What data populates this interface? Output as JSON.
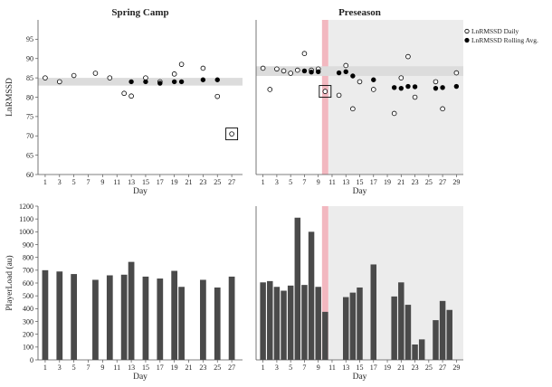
{
  "chart_data": [
    {
      "id": "hrv-spring",
      "type": "scatter",
      "title": "Spring Camp",
      "xlabel": "Day",
      "ylabel": "LnRMSSD",
      "xlim": [
        0,
        28.5
      ],
      "ylim": [
        60,
        100
      ],
      "x_ticks": [
        1,
        3,
        5,
        7,
        9,
        11,
        13,
        15,
        17,
        19,
        21,
        23,
        25,
        27
      ],
      "y_ticks": [
        60,
        65,
        70,
        75,
        80,
        85,
        90,
        95
      ],
      "band": [
        83,
        85
      ],
      "boxed_day": 27,
      "series": [
        {
          "name": "LnRMSSD Daily",
          "marker": "open-circle",
          "x": [
            1,
            3,
            5,
            8,
            10,
            12,
            13,
            15,
            17,
            19,
            20,
            23,
            25,
            27
          ],
          "y": [
            85,
            84,
            85.6,
            86.2,
            85,
            81,
            80.3,
            85,
            84,
            86,
            88.5,
            87.5,
            80.2,
            70.5
          ]
        },
        {
          "name": "LnRMSSD Rolling Avg.",
          "marker": "filled-circle",
          "x": [
            13,
            15,
            17,
            19,
            20,
            23,
            25
          ],
          "y": [
            84,
            84,
            83.6,
            84,
            84,
            84.5,
            84.5
          ]
        }
      ]
    },
    {
      "id": "hrv-preseason",
      "type": "scatter",
      "title": "Preseason",
      "xlabel": "Day",
      "xlim": [
        0,
        30
      ],
      "ylim": [
        60,
        100
      ],
      "x_ticks": [
        1,
        3,
        5,
        7,
        9,
        11,
        13,
        15,
        17,
        19,
        21,
        23,
        25,
        27,
        29
      ],
      "band": [
        85.5,
        88
      ],
      "highlight_day": 10,
      "shade_from_day": 10.5,
      "boxed_day": 10,
      "series": [
        {
          "name": "LnRMSSD Daily",
          "marker": "open-circle",
          "x": [
            1,
            2,
            3,
            4,
            5,
            6,
            7,
            8,
            9,
            10,
            12,
            13,
            14,
            15,
            17,
            20,
            21,
            22,
            23,
            26,
            27,
            29
          ],
          "y": [
            87.5,
            82,
            87.3,
            86.8,
            86.2,
            87,
            91.3,
            87,
            87.3,
            81.5,
            80.5,
            88.2,
            77,
            84,
            82,
            75.8,
            85,
            90.5,
            80,
            84,
            77,
            86.3
          ]
        },
        {
          "name": "LnRMSSD Rolling Avg.",
          "marker": "filled-circle",
          "x": [
            7,
            8,
            9,
            12,
            13,
            14,
            17,
            20,
            21,
            22,
            23,
            26,
            27,
            29
          ],
          "y": [
            86.8,
            86.5,
            86.6,
            86.3,
            86.6,
            85.5,
            84.5,
            82.5,
            82.3,
            82.8,
            82.7,
            82.3,
            82.5,
            82.8
          ]
        }
      ]
    },
    {
      "id": "load-spring",
      "type": "bar",
      "xlabel": "Day",
      "ylabel": "PlayerLoad (au)",
      "xlim": [
        0,
        28.5
      ],
      "ylim": [
        0,
        1200
      ],
      "x_ticks": [
        1,
        3,
        5,
        7,
        9,
        11,
        13,
        15,
        17,
        19,
        21,
        23,
        25,
        27
      ],
      "y_ticks": [
        0,
        100,
        200,
        300,
        400,
        500,
        600,
        700,
        800,
        900,
        1000,
        1100,
        1200
      ],
      "categories": [
        1,
        3,
        5,
        8,
        10,
        12,
        13,
        15,
        17,
        19,
        20,
        23,
        25,
        27
      ],
      "values": [
        700,
        690,
        670,
        625,
        660,
        665,
        765,
        650,
        635,
        695,
        570,
        625,
        565,
        650
      ]
    },
    {
      "id": "load-preseason",
      "type": "bar",
      "xlabel": "Day",
      "xlim": [
        0,
        30
      ],
      "ylim": [
        0,
        1200
      ],
      "x_ticks": [
        1,
        3,
        5,
        7,
        9,
        11,
        13,
        15,
        17,
        19,
        21,
        23,
        25,
        27,
        29
      ],
      "highlight_day": 10,
      "shade_from_day": 10.5,
      "categories": [
        1,
        2,
        3,
        4,
        5,
        6,
        7,
        8,
        9,
        10,
        13,
        14,
        15,
        17,
        20,
        21,
        22,
        23,
        24,
        26,
        27,
        28
      ],
      "values": [
        605,
        615,
        570,
        540,
        580,
        1110,
        585,
        1000,
        570,
        375,
        490,
        525,
        565,
        745,
        495,
        605,
        430,
        120,
        160,
        310,
        460,
        390
      ]
    }
  ],
  "legend": {
    "position": "top-right",
    "items": [
      {
        "label": "LnRMSSD Daily",
        "marker": "open-circle"
      },
      {
        "label": "LnRMSSD Rolling Avg.",
        "marker": "filled-circle"
      }
    ]
  },
  "colors": {
    "band": "#dcdcdc",
    "shade": "#ececec",
    "highlight": "#f2b8c0",
    "bar": "#4a4a4a",
    "axis": "#555555",
    "marker": "#000000"
  }
}
